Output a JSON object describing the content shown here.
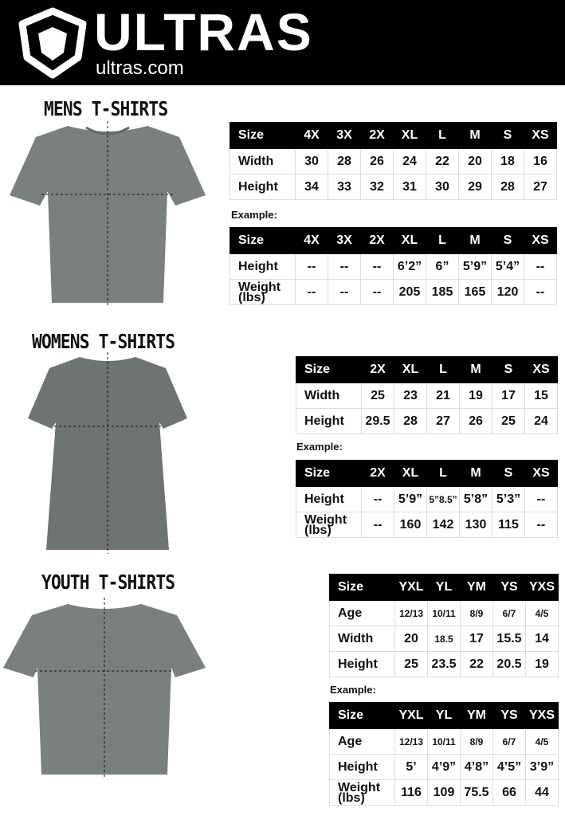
{
  "header": {
    "brand": "ULTRAS",
    "url": "ultras.com"
  },
  "example_label": "Example:",
  "sections": [
    {
      "title": "MENS T-SHIRTS",
      "measure": {
        "header": [
          "Size",
          "4X",
          "3X",
          "2X",
          "XL",
          "L",
          "M",
          "S",
          "XS"
        ],
        "rows": [
          [
            "Width",
            "30",
            "28",
            "26",
            "24",
            "22",
            "20",
            "18",
            "16"
          ],
          [
            "Height",
            "34",
            "33",
            "32",
            "31",
            "30",
            "29",
            "28",
            "27"
          ]
        ]
      },
      "example": {
        "header": [
          "Size",
          "4X",
          "3X",
          "2X",
          "XL",
          "L",
          "M",
          "S",
          "XS"
        ],
        "rows": [
          [
            "Height",
            "--",
            "--",
            "--",
            "6’2”",
            "6”",
            "5’9”",
            "5’4”",
            "--"
          ],
          [
            "Weight (lbs)",
            "--",
            "--",
            "--",
            "205",
            "185",
            "165",
            "120",
            "--"
          ]
        ]
      }
    },
    {
      "title": "WOMENS T-SHIRTS",
      "measure": {
        "header": [
          "Size",
          "2X",
          "XL",
          "L",
          "M",
          "S",
          "XS"
        ],
        "rows": [
          [
            "Width",
            "25",
            "23",
            "21",
            "19",
            "17",
            "15"
          ],
          [
            "Height",
            "29.5",
            "28",
            "27",
            "26",
            "25",
            "24"
          ]
        ]
      },
      "example": {
        "header": [
          "Size",
          "2X",
          "XL",
          "L",
          "M",
          "S",
          "XS"
        ],
        "rows": [
          [
            "Height",
            "--",
            "5’9”",
            "5”8.5”",
            "5’8”",
            "5’3”",
            "--"
          ],
          [
            "Weight (lbs)",
            "--",
            "160",
            "142",
            "130",
            "115",
            "--"
          ]
        ]
      }
    },
    {
      "title": "YOUTH T-SHIRTS",
      "measure": {
        "header": [
          "Size",
          "YXL",
          "YL",
          "YM",
          "YS",
          "YXS"
        ],
        "rows": [
          [
            "Age",
            "12/13",
            "10/11",
            "8/9",
            "6/7",
            "4/5"
          ],
          [
            "Width",
            "20",
            "18.5",
            "17",
            "15.5",
            "14"
          ],
          [
            "Height",
            "25",
            "23.5",
            "22",
            "20.5",
            "19"
          ]
        ]
      },
      "example": {
        "header": [
          "Size",
          "YXL",
          "YL",
          "YM",
          "YS",
          "YXS"
        ],
        "rows": [
          [
            "Age",
            "12/13",
            "10/11",
            "8/9",
            "6/7",
            "4/5"
          ],
          [
            "Height",
            "5’",
            "4’9”",
            "4’8”",
            "4’5”",
            "3’9”"
          ],
          [
            "Weight (lbs)",
            "116",
            "109",
            "75.5",
            "66",
            "44"
          ]
        ]
      }
    }
  ],
  "colors": {
    "header_bg": "#000000",
    "shirt": "#7a7f80"
  }
}
